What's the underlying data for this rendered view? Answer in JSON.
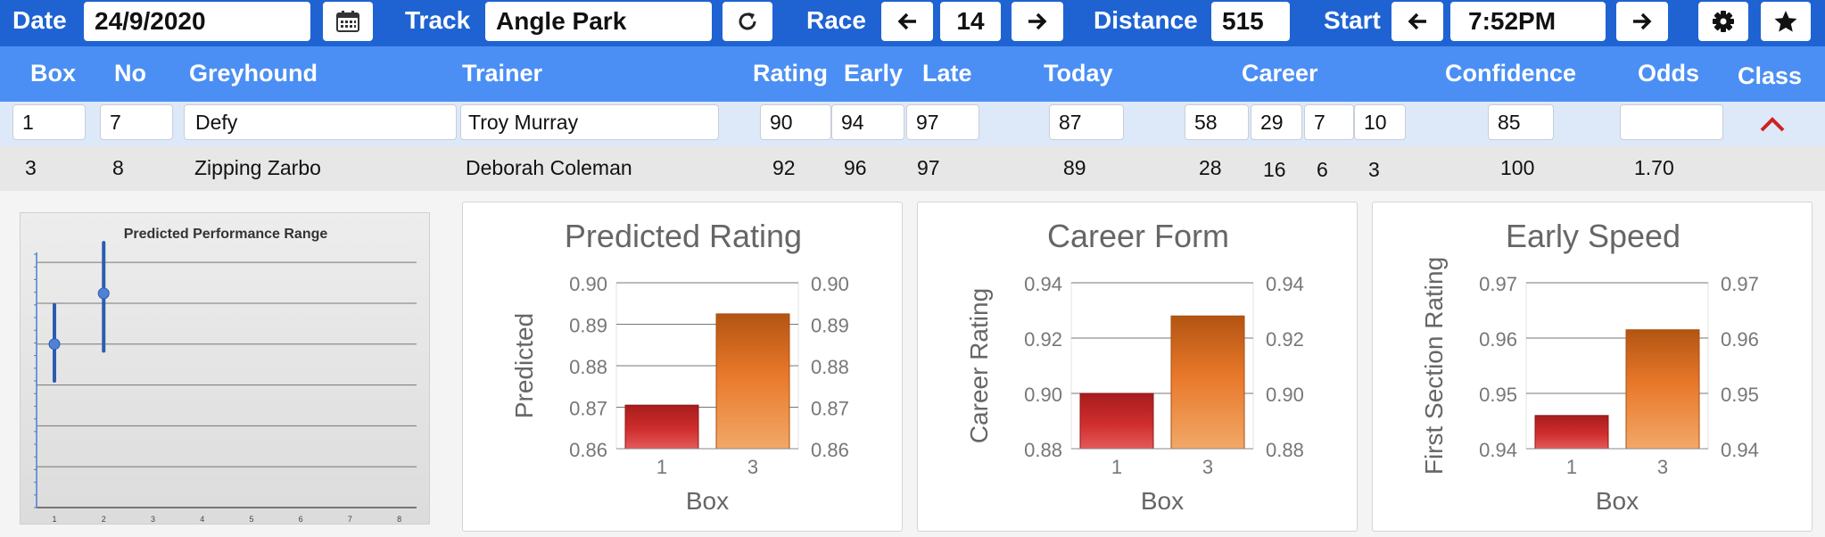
{
  "toolbar": {
    "date_label": "Date",
    "date_value": "24/9/2020",
    "track_label": "Track",
    "track_value": "Angle Park",
    "race_label": "Race",
    "race_value": "14",
    "distance_label": "Distance",
    "distance_value": "515",
    "start_label": "Start",
    "start_value": "7:52PM",
    "icons": [
      "calendar-icon",
      "refresh-icon",
      "arrow-left-icon",
      "arrow-right-icon",
      "gear-icon",
      "star-icon"
    ]
  },
  "table": {
    "headers": {
      "box": "Box",
      "no": "No",
      "greyhound": "Greyhound",
      "trainer": "Trainer",
      "rating": "Rating",
      "early": "Early",
      "late": "Late",
      "today": "Today",
      "career": "Career",
      "confidence": "Confidence",
      "odds": "Odds",
      "class": "Class"
    },
    "rows": [
      {
        "box": "1",
        "no": "7",
        "greyhound": "Defy",
        "trainer": "Troy Murray",
        "rating": "90",
        "early": "94",
        "late": "97",
        "today": "87",
        "career": [
          "58",
          "29",
          "7",
          "10"
        ],
        "confidence": "85",
        "odds": "",
        "expanded": true
      },
      {
        "box": "3",
        "no": "8",
        "greyhound": "Zipping Zarbo",
        "trainer": "Deborah Coleman",
        "rating": "92",
        "early": "96",
        "late": "97",
        "today": "89",
        "career": [
          "28",
          "16",
          "6",
          "3"
        ],
        "confidence": "100",
        "odds": "1.70"
      }
    ]
  },
  "colors": {
    "toolbar": "#1f63d2",
    "header": "#4b8ff4",
    "row_selected": "#dde9f8",
    "chevron": "#cc2222"
  },
  "performance_range": {
    "title": "Predicted Performance Range",
    "x_labels": [
      "1",
      "2",
      "3",
      "4",
      "5",
      "6",
      "7",
      "8"
    ]
  },
  "charts": [
    {
      "id": "predicted-rating",
      "title": "Predicted Rating",
      "ylabel": "Predicted",
      "xlabel": "Box",
      "ticks": [
        "0.86",
        "0.87",
        "0.88",
        "0.89",
        "0.90"
      ]
    },
    {
      "id": "career-form",
      "title": "Career Form",
      "ylabel": "Career Rating",
      "xlabel": "Box",
      "ticks": [
        "0.88",
        "0.90",
        "0.92",
        "0.94"
      ]
    },
    {
      "id": "early-speed",
      "title": "Early Speed",
      "ylabel": "First Section Rating",
      "xlabel": "Box",
      "ticks": [
        "0.94",
        "0.95",
        "0.96",
        "0.97"
      ]
    }
  ],
  "chart_data": [
    {
      "type": "scatter",
      "title": "Predicted Performance Range",
      "x": [
        1,
        2
      ],
      "y": [
        0.871,
        0.893
      ],
      "y_low": [
        0.855,
        0.868
      ],
      "y_high": [
        0.888,
        0.915
      ],
      "xlim": [
        1,
        8
      ],
      "x_ticks": [
        "1",
        "2",
        "3",
        "4",
        "5",
        "6",
        "7",
        "8"
      ]
    },
    {
      "type": "bar",
      "title": "Predicted Rating",
      "xlabel": "Box",
      "ylabel": "Predicted",
      "categories": [
        "1",
        "3"
      ],
      "values": [
        0.8705,
        0.8925
      ],
      "ylim": [
        0.86,
        0.9
      ],
      "yticks": [
        0.86,
        0.87,
        0.88,
        0.89,
        0.9
      ],
      "grid": true
    },
    {
      "type": "bar",
      "title": "Career Form",
      "xlabel": "Box",
      "ylabel": "Career Rating",
      "categories": [
        "1",
        "3"
      ],
      "values": [
        0.9,
        0.928
      ],
      "ylim": [
        0.88,
        0.94
      ],
      "yticks": [
        0.88,
        0.9,
        0.92,
        0.94
      ],
      "grid": true
    },
    {
      "type": "bar",
      "title": "Early Speed",
      "xlabel": "Box",
      "ylabel": "First Section Rating",
      "categories": [
        "1",
        "3"
      ],
      "values": [
        0.946,
        0.9615
      ],
      "ylim": [
        0.94,
        0.97
      ],
      "yticks": [
        0.94,
        0.95,
        0.96,
        0.97
      ],
      "grid": true
    }
  ]
}
